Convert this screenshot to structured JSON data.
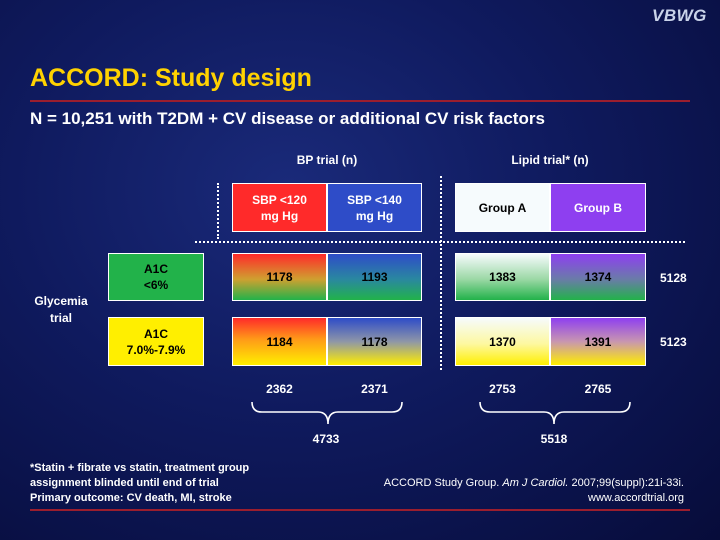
{
  "logo": "VBWG",
  "title": "ACCORD: Study design",
  "subtitle": "N = 10,251 with T2DM + CV disease or additional CV risk factors",
  "headers": {
    "bp_trial": "BP trial (n)",
    "lipid_trial": "Lipid trial* (n)"
  },
  "columns": {
    "sbp120": "SBP <120 mg Hg",
    "sbp140": "SBP <140 mg Hg",
    "groupA": "Group A",
    "groupB": "Group B"
  },
  "rows": {
    "glycemia_label": "Glycemia trial",
    "a1c_low": "A1C <6%",
    "a1c_std": "A1C 7.0%-7.9%"
  },
  "values": {
    "r1": [
      "1178",
      "1193",
      "1383",
      "1374"
    ],
    "r2": [
      "1184",
      "1178",
      "1370",
      "1391"
    ],
    "row_totals": [
      "5128",
      "5123"
    ],
    "col_totals": [
      "2362",
      "2371",
      "2753",
      "2765"
    ],
    "bp_total": "4733",
    "lipid_total": "5518"
  },
  "footnote": [
    "*Statin + fibrate vs statin, treatment group",
    "assignment blinded until end of trial",
    "Primary outcome: CV death, MI, stroke"
  ],
  "citation": {
    "line1_pre": "ACCORD Study Group.",
    "journal": "Am J Cardiol.",
    "line1_post": "2007;99(suppl):21i-33i.",
    "url": "www.accordtrial.org"
  },
  "colors": {
    "title": "#ffd200",
    "rule": "#9b1e2e",
    "red": "#ff2a2a",
    "green": "#22b24a",
    "yellow": "#ffef00",
    "blue": "#2e4cc8",
    "purple": "#8e3ff0",
    "light": "#f6fbfd"
  }
}
